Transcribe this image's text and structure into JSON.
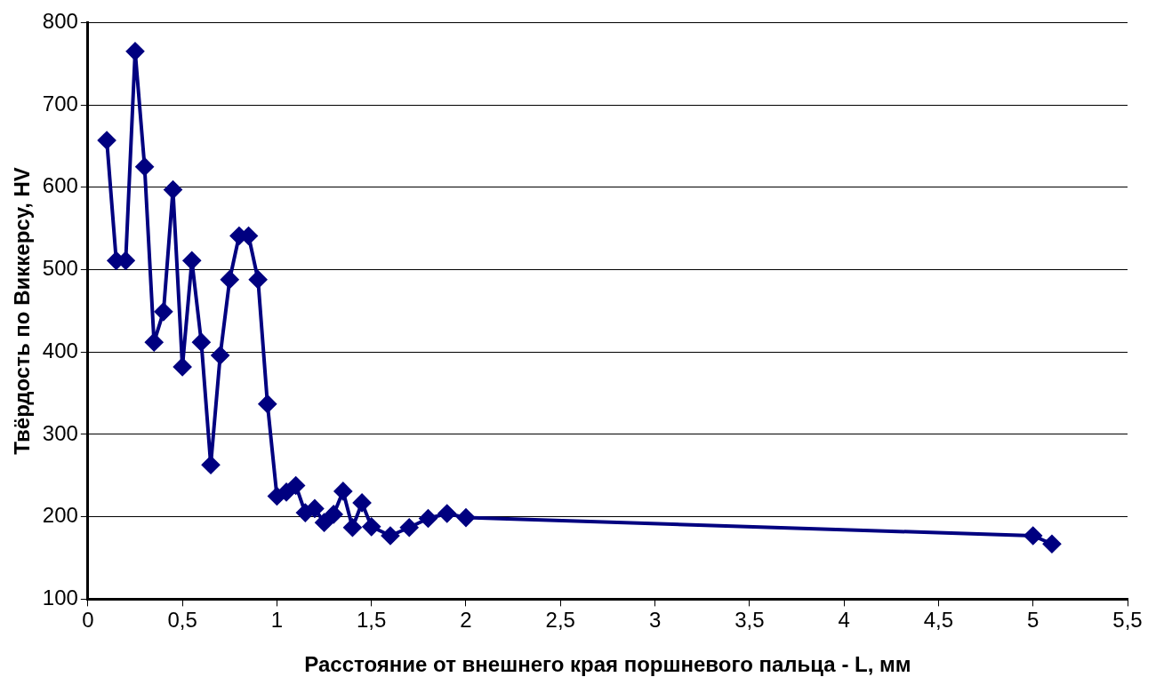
{
  "chart_data": {
    "type": "line",
    "xlabel": "Расстояние от внешнего края поршневого пальца - L, мм",
    "ylabel": "Твёрдость по Виккерсу, HV",
    "x": [
      0.1,
      0.15,
      0.2,
      0.25,
      0.3,
      0.35,
      0.4,
      0.45,
      0.5,
      0.55,
      0.6,
      0.65,
      0.7,
      0.75,
      0.8,
      0.85,
      0.9,
      0.95,
      1.0,
      1.05,
      1.1,
      1.15,
      1.2,
      1.25,
      1.3,
      1.35,
      1.4,
      1.45,
      1.5,
      1.6,
      1.7,
      1.8,
      1.9,
      2.0,
      5.0,
      5.1
    ],
    "series": [
      {
        "color": "#000080",
        "values": [
          657,
          511,
          511,
          765,
          625,
          412,
          449,
          597,
          382,
          511,
          412,
          263,
          396,
          488,
          541,
          541,
          488,
          337,
          225,
          230,
          238,
          205,
          210,
          193,
          203,
          231,
          187,
          217,
          188,
          177,
          187,
          198,
          204,
          199,
          177,
          167
        ]
      }
    ],
    "xlim": [
      0,
      5.5
    ],
    "xticks": [
      0,
      {
        "value": 0.5,
        "label": "0,5"
      },
      1,
      {
        "value": 1.5,
        "label": "1,5"
      },
      2,
      {
        "value": 2.5,
        "label": "2,5"
      },
      3,
      {
        "value": 3.5,
        "label": "3,5"
      },
      4,
      {
        "value": 4.5,
        "label": "4,5"
      },
      5,
      {
        "value": 5.5,
        "label": "5,5"
      }
    ],
    "ylim": [
      100,
      800
    ],
    "yticks": [
      100,
      200,
      300,
      400,
      500,
      600,
      700,
      800
    ],
    "grid": "y",
    "legend": false,
    "marker": "diamond",
    "line_style": "solid"
  }
}
